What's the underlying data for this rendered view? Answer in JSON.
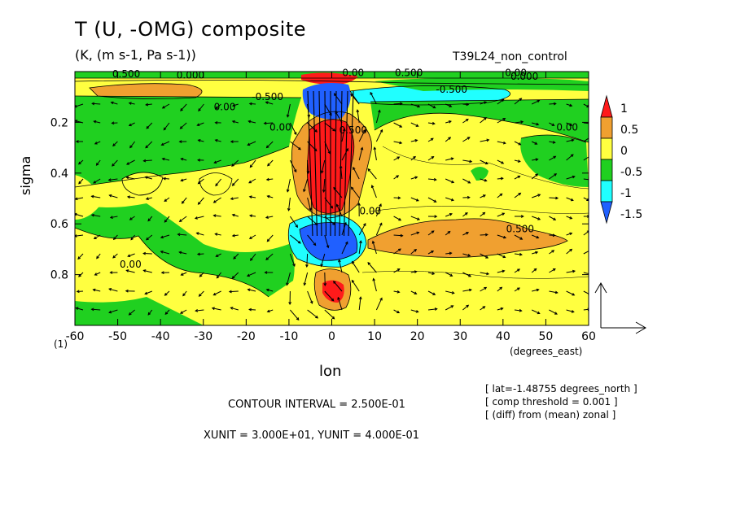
{
  "header": {
    "title": "T (U, -OMG) composite",
    "units": "(K, (m s-1, Pa s-1))",
    "experiment": "T39L24_non_control"
  },
  "axes": {
    "xlabel": "lon",
    "xunits": "(degrees_east)",
    "ylabel": "sigma",
    "corner_label": "(1)"
  },
  "footer": {
    "contour_interval": "CONTOUR INTERVAL = 2.500E-01",
    "units_line": "XUNIT = 3.000E+01, YUNIT = 4.000E-01",
    "notes": [
      "[ lat=-1.48755 degrees_north ]",
      "[ comp threshold = 0.001 ]",
      "[ (diff) from (mean) zonal ]"
    ]
  },
  "colors": {
    "red": "#ff1a1a",
    "orange": "#f0a030",
    "yellow": "#ffff40",
    "green": "#20d020",
    "cyan": "#20ffff",
    "blue": "#2060ff"
  },
  "chart_data": {
    "type": "heatmap",
    "subtype": "contour with vector overlay",
    "xlim": [
      -60,
      60
    ],
    "ylim": [
      1.0,
      0.0
    ],
    "y_inverted": true,
    "xticks": [
      -60,
      -50,
      -40,
      -30,
      -20,
      -10,
      0,
      10,
      20,
      30,
      40,
      50,
      60
    ],
    "yticks": [
      0.2,
      0.4,
      0.6,
      0.8
    ],
    "colorbar": {
      "levels": [
        -1.5,
        -1,
        -0.5,
        0,
        0.5,
        1
      ],
      "labels": [
        "1",
        "0.5",
        "0",
        "-0.5",
        "-1",
        "-1.5"
      ],
      "bands": [
        "red",
        "orange",
        "yellow",
        "green",
        "cyan",
        "blue"
      ]
    },
    "contour_labels": [
      {
        "text": "0.500",
        "x": -48,
        "y": 0.01
      },
      {
        "text": "0.000",
        "x": -33,
        "y": 0.015
      },
      {
        "text": "0.00",
        "x": 5,
        "y": 0.005
      },
      {
        "text": "0.500",
        "x": 18,
        "y": 0.005
      },
      {
        "text": "0.00",
        "x": 43,
        "y": 0.005
      },
      {
        "text": "0.000",
        "x": 45,
        "y": 0.02
      },
      {
        "text": "0.00",
        "x": -25,
        "y": 0.14
      },
      {
        "text": "-0.500",
        "x": -15,
        "y": 0.1
      },
      {
        "text": "-0.500",
        "x": 28,
        "y": 0.07
      },
      {
        "text": "0.00",
        "x": -12,
        "y": 0.22
      },
      {
        "text": "0.500",
        "x": 5,
        "y": 0.23
      },
      {
        "text": "0.00",
        "x": 55,
        "y": 0.22
      },
      {
        "text": "0.00",
        "x": 9,
        "y": 0.55
      },
      {
        "text": "0.500",
        "x": 44,
        "y": 0.62
      },
      {
        "text": "0.00",
        "x": -47,
        "y": 0.76
      }
    ],
    "regions": [
      {
        "level": "green",
        "x": [
          -60,
          60
        ],
        "y": [
          0.1,
          0.3
        ],
        "desc": "upper negative band"
      },
      {
        "level": "red",
        "x": [
          -5,
          5
        ],
        "y": [
          0.2,
          0.6
        ],
        "desc": "warm anomaly core"
      },
      {
        "level": "blue",
        "x": [
          -6,
          3
        ],
        "y": [
          0.62,
          0.78
        ],
        "desc": "cold anomaly"
      },
      {
        "level": "red",
        "x": [
          -2,
          5
        ],
        "y": [
          0.84,
          0.9
        ],
        "desc": "lower warm anomaly"
      },
      {
        "level": "orange",
        "x": [
          10,
          55
        ],
        "y": [
          0.6,
          0.7
        ],
        "desc": "warm tongue"
      }
    ],
    "reference_vector": {
      "u": 30,
      "omega": 0.4
    }
  }
}
